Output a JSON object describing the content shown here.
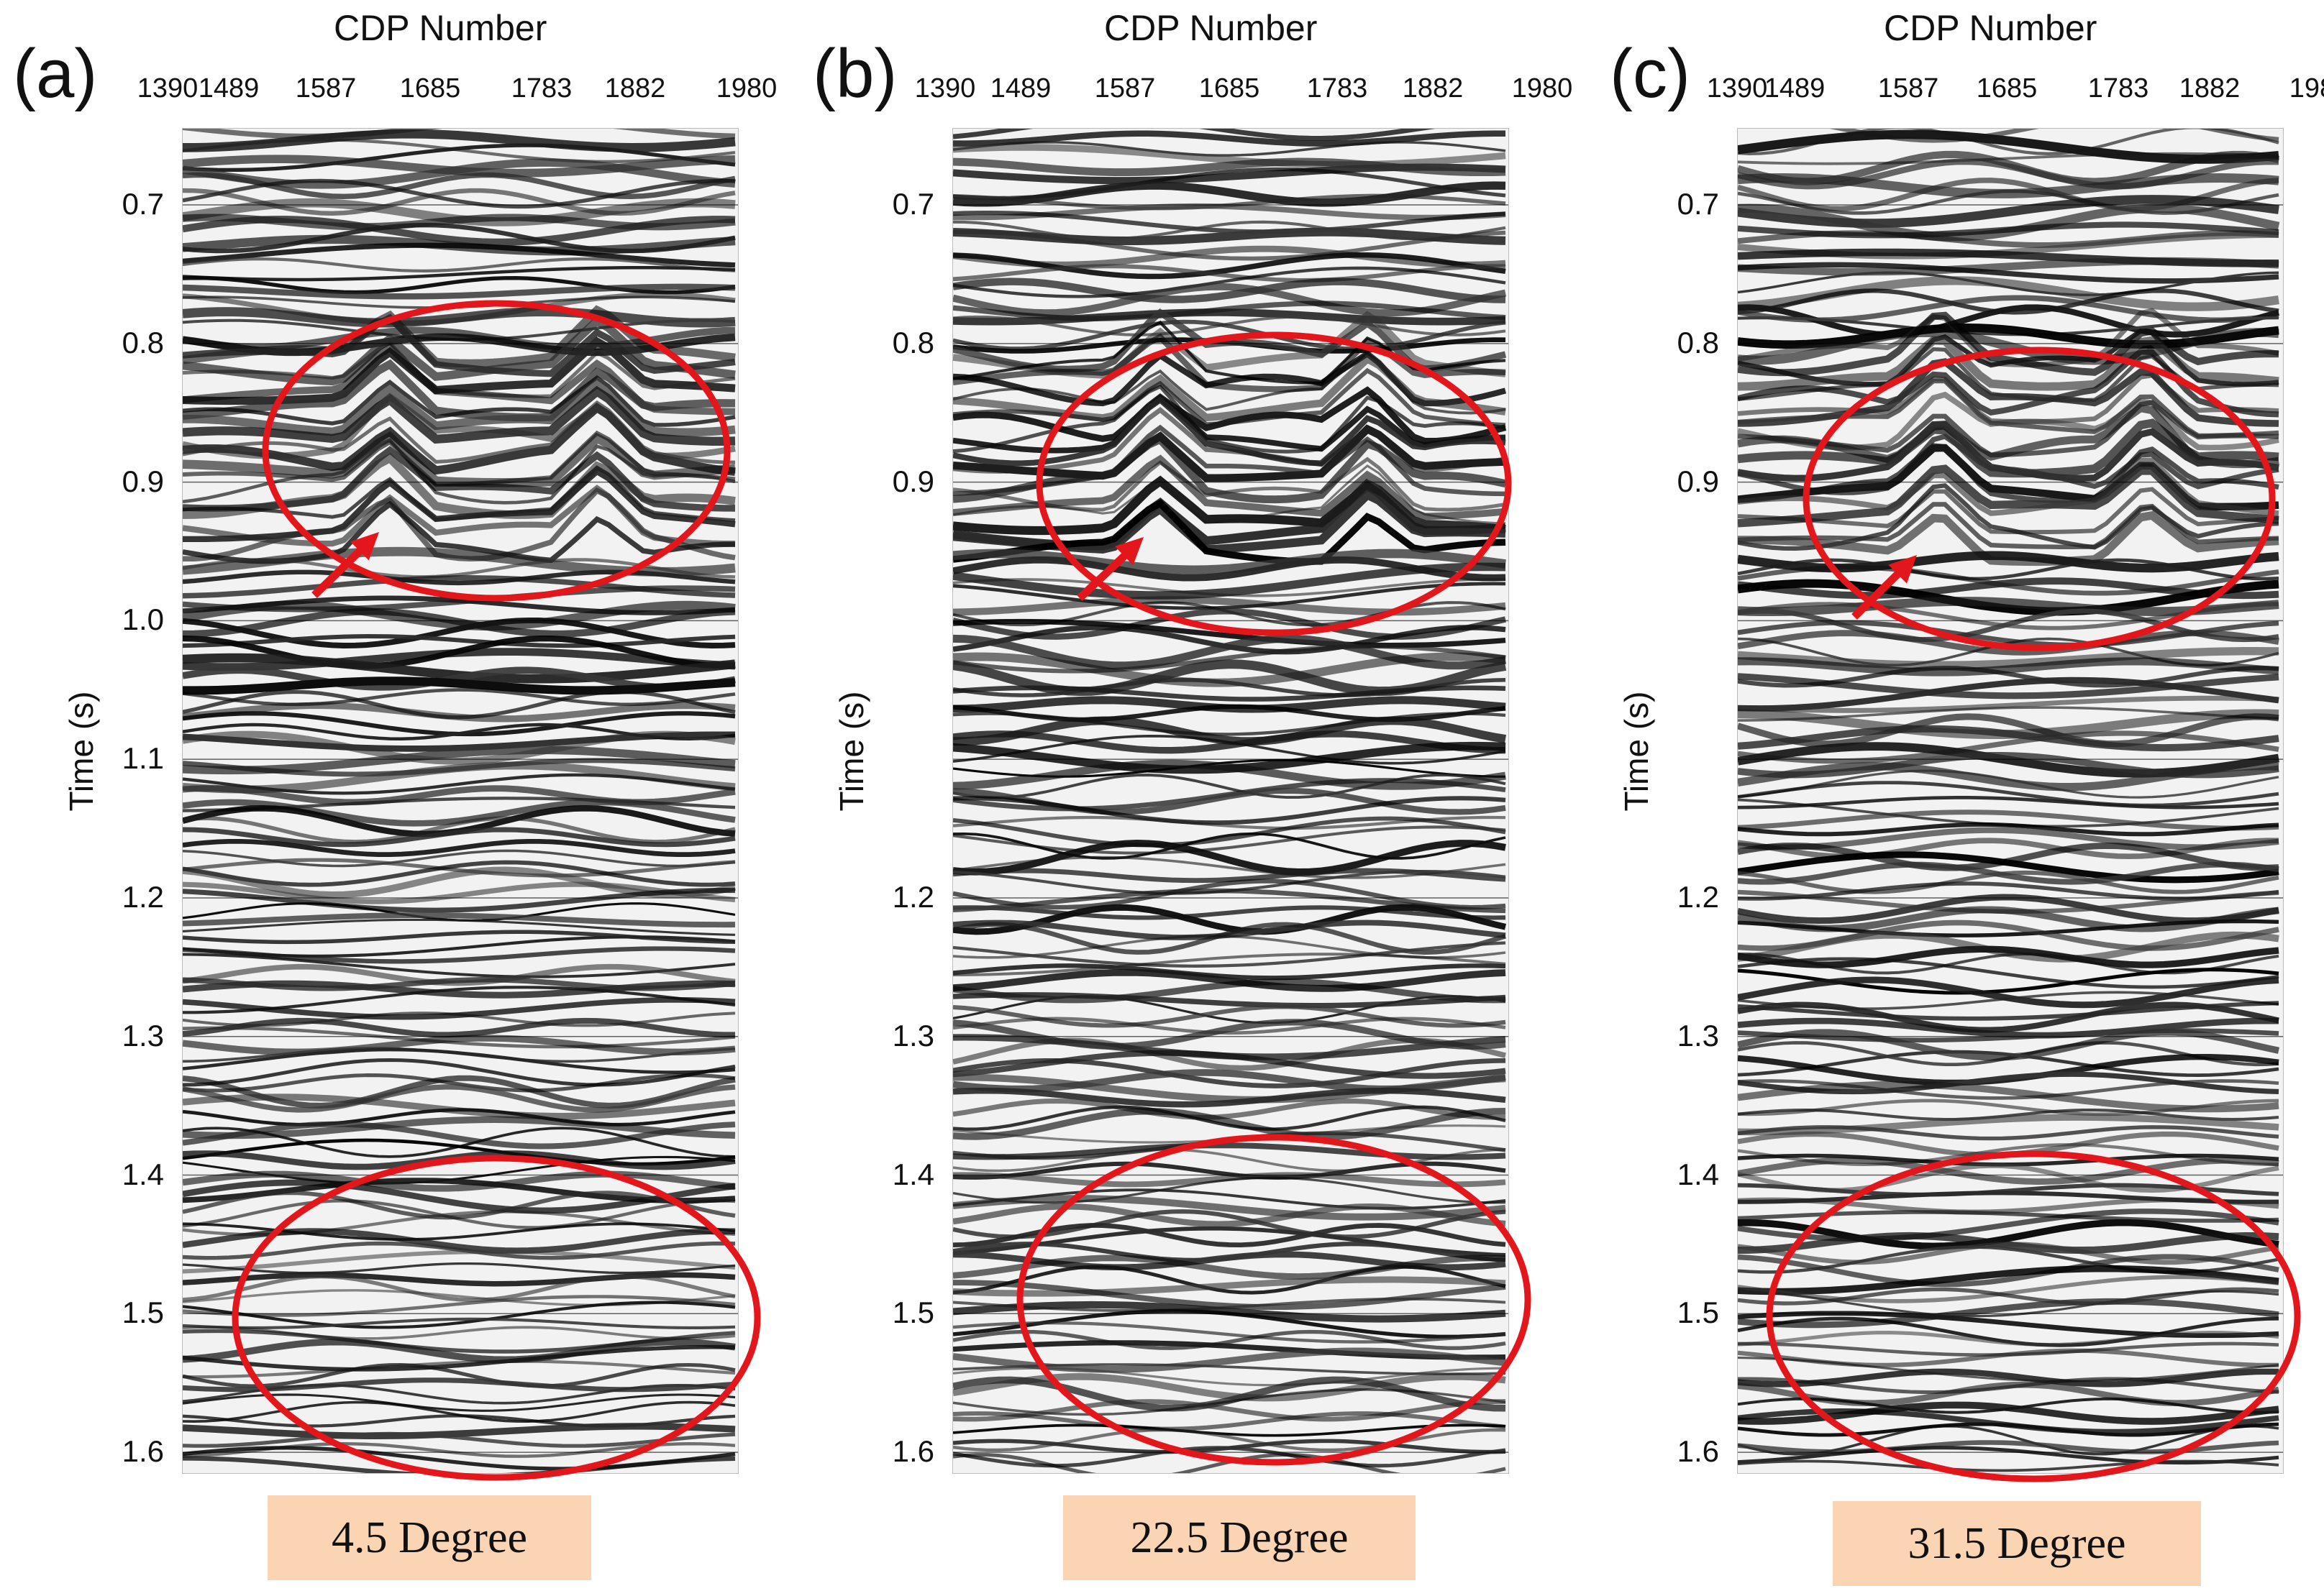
{
  "figure": {
    "x_axis_title": "CDP Number",
    "y_axis_title": "Time (s)",
    "x_ticks": [
      "1390",
      "1489",
      "1587",
      "1685",
      "1783",
      "1882",
      "1980"
    ],
    "y_ticks": [
      "0.7",
      "0.8",
      "0.9",
      "1.0",
      "1.1",
      "1.2",
      "1.3",
      "1.4",
      "1.5",
      "1.6"
    ],
    "annotation_color": "#e3161b",
    "caption_color": "#fbd4b4",
    "panels": [
      {
        "letter": "(a)",
        "caption": "4.5 Degree",
        "y_ticks": [
          "0.7",
          "0.8",
          "0.9",
          "1.0",
          "1.1",
          "1.2",
          "1.3",
          "1.4",
          "1.5",
          "1.6"
        ]
      },
      {
        "letter": "(b)",
        "caption": "22.5 Degree",
        "y_ticks": [
          "0.7",
          "0.8",
          "0.9",
          "1.2",
          "1.3",
          "1.4",
          "1.5",
          "1.6"
        ]
      },
      {
        "letter": "(c)",
        "caption": "31.5 Degree",
        "y_ticks": [
          "0.7",
          "0.8",
          "0.9",
          "1.2",
          "1.3",
          "1.4",
          "1.5",
          "1.6"
        ]
      }
    ],
    "annotations": [
      "upper-ellipse",
      "lower-ellipse",
      "arrow"
    ]
  }
}
